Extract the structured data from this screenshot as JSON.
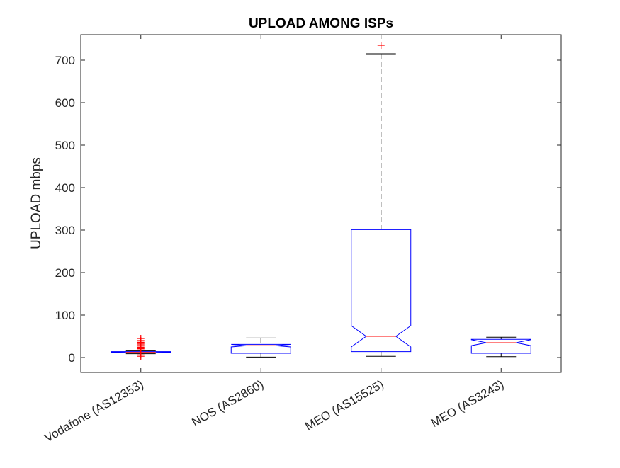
{
  "chart_data": {
    "type": "boxplot",
    "title": "UPLOAD AMONG ISPs",
    "ylabel": "UPLOAD mbps",
    "xlabel": "",
    "ylim": [
      -35,
      760
    ],
    "yticks": [
      0,
      100,
      200,
      300,
      400,
      500,
      600,
      700
    ],
    "notched": true,
    "grid": false,
    "categories": [
      "Vodafone (AS12353)",
      "NOS (AS2860)",
      "MEO (AS15525)",
      "MEO (AS3243)"
    ],
    "boxes": [
      {
        "category": "Vodafone (AS12353)",
        "whisker_low": 9,
        "q1": 11,
        "median": 12,
        "q3": 14,
        "whisker_high": 16,
        "notch_low": 11.5,
        "notch_high": 12.5,
        "outliers": [
          3,
          6,
          18,
          21,
          24,
          27,
          30,
          33,
          36,
          40,
          45
        ]
      },
      {
        "category": "NOS (AS2860)",
        "whisker_low": 1,
        "q1": 10,
        "median": 28,
        "q3": 31,
        "whisker_high": 46,
        "notch_low": 25,
        "notch_high": 31,
        "outliers": []
      },
      {
        "category": "MEO (AS15525)",
        "whisker_low": 3,
        "q1": 14,
        "median": 50,
        "q3": 301,
        "whisker_high": 715,
        "notch_low": 25,
        "notch_high": 75,
        "outliers": [
          735
        ]
      },
      {
        "category": "MEO (AS3243)",
        "whisker_low": 2,
        "q1": 10,
        "median": 35,
        "q3": 43,
        "whisker_high": 48,
        "notch_low": 28,
        "notch_high": 42,
        "outliers": []
      }
    ],
    "colors": {
      "box": "#0000ff",
      "median": "#ff0000",
      "whisker": "#000000",
      "outlier": "#ff0000",
      "axis": "#262626"
    }
  }
}
